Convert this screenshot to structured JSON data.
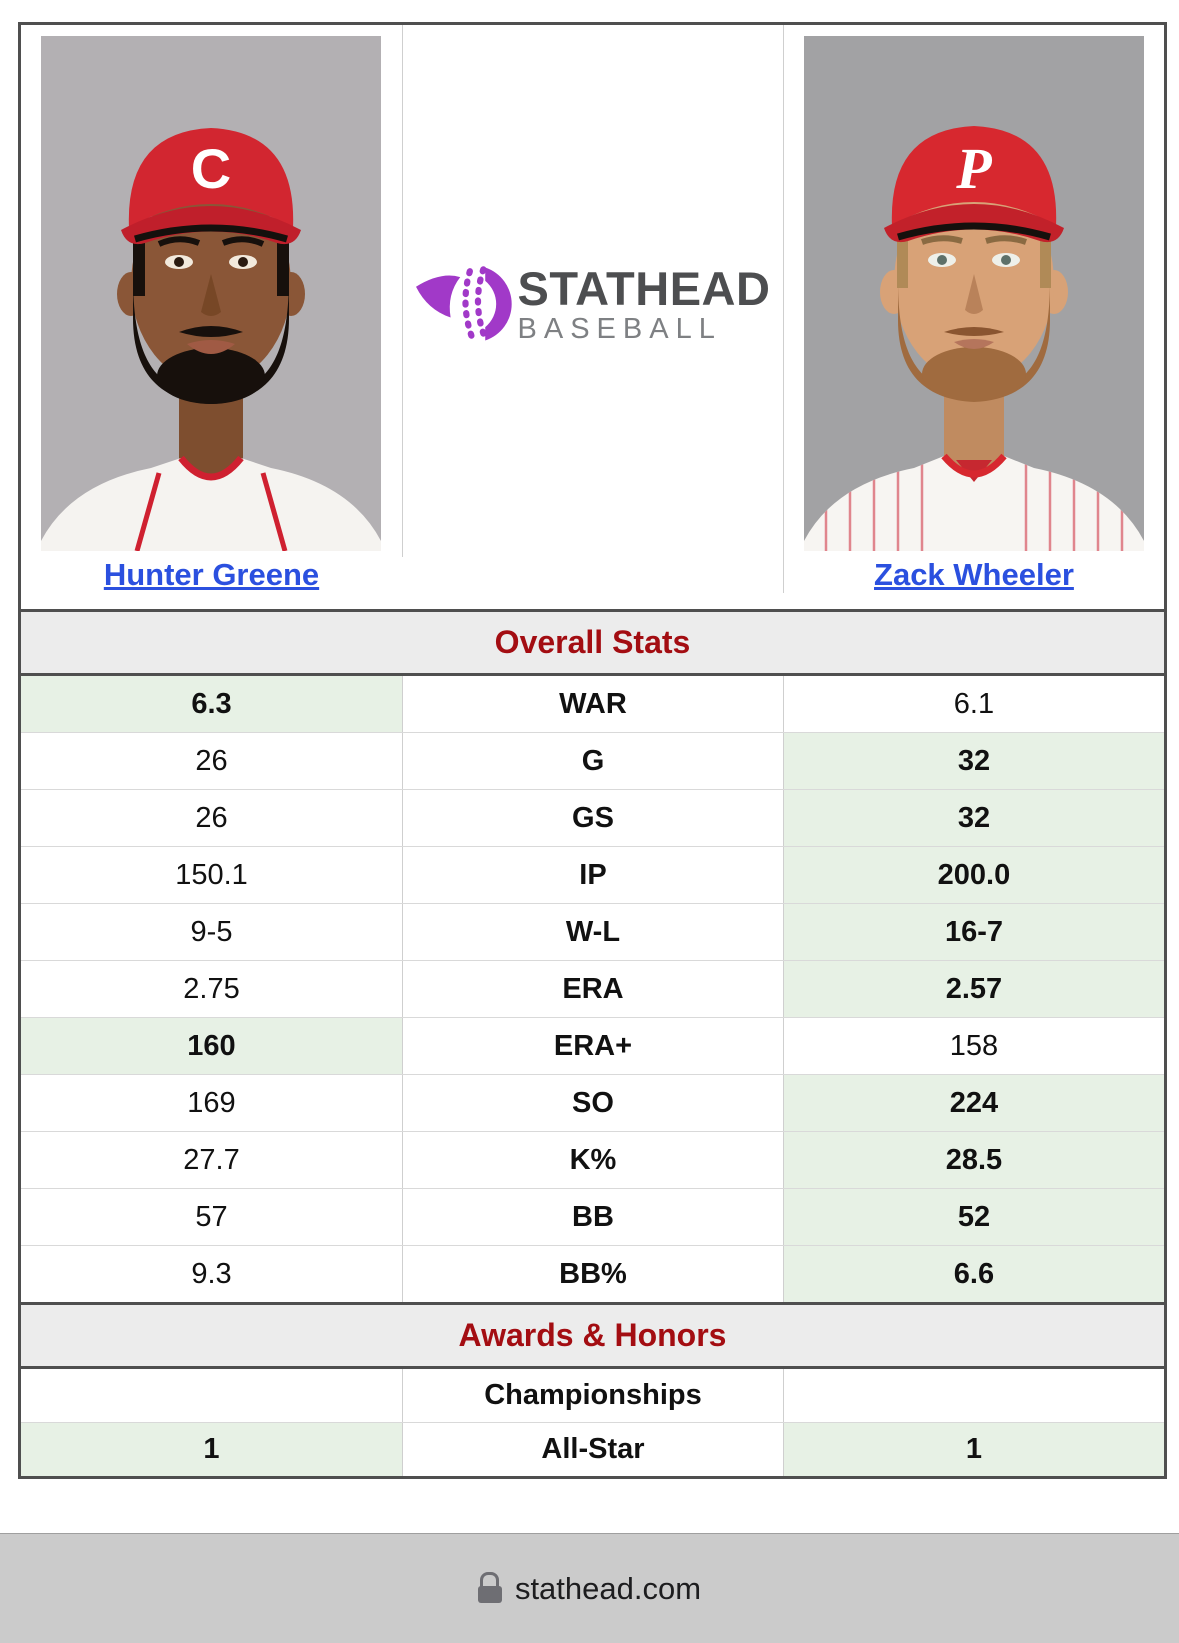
{
  "players": {
    "left": {
      "name": "Hunter Greene",
      "cap_letter": "C"
    },
    "right": {
      "name": "Zack Wheeler",
      "cap_letter": "P"
    }
  },
  "logo": {
    "title": "STATHEAD",
    "subtitle": "BASEBALL"
  },
  "sections": [
    {
      "title": "Overall Stats",
      "rows": [
        {
          "label": "WAR",
          "left": "6.3",
          "right": "6.1",
          "highlight": "left"
        },
        {
          "label": "G",
          "left": "26",
          "right": "32",
          "highlight": "right"
        },
        {
          "label": "GS",
          "left": "26",
          "right": "32",
          "highlight": "right"
        },
        {
          "label": "IP",
          "left": "150.1",
          "right": "200.0",
          "highlight": "right"
        },
        {
          "label": "W-L",
          "left": "9-5",
          "right": "16-7",
          "highlight": "right"
        },
        {
          "label": "ERA",
          "left": "2.75",
          "right": "2.57",
          "highlight": "right"
        },
        {
          "label": "ERA+",
          "left": "160",
          "right": "158",
          "highlight": "left"
        },
        {
          "label": "SO",
          "left": "169",
          "right": "224",
          "highlight": "right"
        },
        {
          "label": "K%",
          "left": "27.7",
          "right": "28.5",
          "highlight": "right"
        },
        {
          "label": "BB",
          "left": "57",
          "right": "52",
          "highlight": "right"
        },
        {
          "label": "BB%",
          "left": "9.3",
          "right": "6.6",
          "highlight": "right"
        }
      ]
    },
    {
      "title": "Awards & Honors",
      "rows": [
        {
          "label": "Championships",
          "left": "",
          "right": "",
          "highlight": "none"
        },
        {
          "label": "All-Star",
          "left": "1",
          "right": "1",
          "highlight": "both"
        }
      ]
    }
  ],
  "footer": {
    "domain": "stathead.com"
  },
  "colors": {
    "highlight_green": "#e7f1e5",
    "section_header_bg": "#ececec",
    "section_title_red": "#a30d12",
    "link_blue": "#2b50df",
    "border_dark": "#4f4f4f",
    "border_light": "#d9d9d9",
    "footer_bg": "#cbcbcb",
    "logo_purple": "#a139c8",
    "cap_red": "#d22630"
  }
}
